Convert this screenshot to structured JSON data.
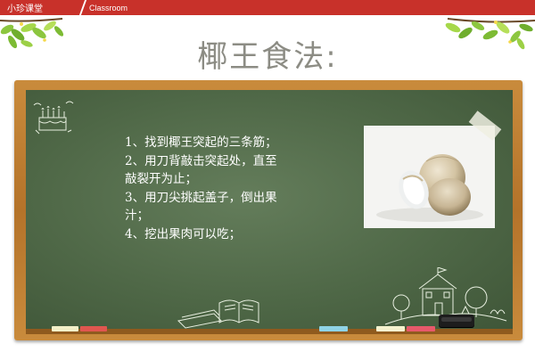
{
  "header": {
    "tab_label": "小珍课堂",
    "section_label": "Classroom"
  },
  "slide": {
    "title": "椰王食法:",
    "steps": [
      "1、找到椰王突起的三条筋；",
      "2、用刀背敲击突起处，直至",
      "敲裂开为止；",
      "3、用刀尖挑起盖子，倒出果",
      "汁；",
      "4、挖出果肉可以吃；"
    ]
  },
  "colors": {
    "header_bar": "#c8312a",
    "title": "#8c8c84",
    "frame": "#b4732a",
    "board": "#4f6847"
  },
  "chalk_colors": [
    "#f3f0c8",
    "#e0564f",
    "#8fd3e6",
    "#f6f3cf",
    "#e7596a"
  ]
}
